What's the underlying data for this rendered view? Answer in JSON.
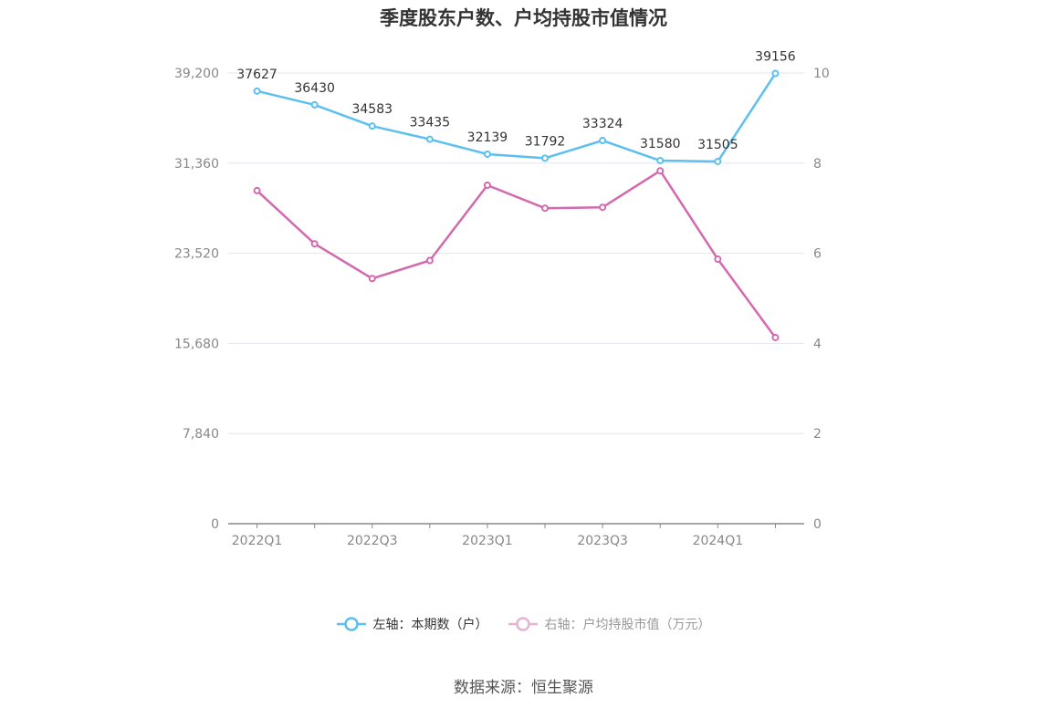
{
  "title": "季度股东户数、户均持股市值情况",
  "source": "数据来源：恒生聚源",
  "legend": {
    "left": "左轴：本期数（户）",
    "right": "右轴：户均持股市值（万元）"
  },
  "colors": {
    "holders": "#5bbff0",
    "value": "#d36aae",
    "grid": "#e3e6ee",
    "axis": "#888888"
  },
  "chart_data": {
    "type": "line",
    "title": "季度股东户数、户均持股市值情况",
    "categories": [
      "2022Q1",
      "2022Q2",
      "2022Q3",
      "2022Q4",
      "2023Q1",
      "2023Q2",
      "2023Q3",
      "2023Q4",
      "2024Q1",
      "2024Q2"
    ],
    "x_tick_labels": [
      "2022Q1",
      "2022Q3",
      "2023Q1",
      "2023Q3",
      "2024Q1"
    ],
    "y_left": {
      "range": [
        0,
        39200
      ],
      "ticks": [
        "0",
        "7,840",
        "15,680",
        "23,520",
        "31,360",
        "39,200"
      ]
    },
    "y_right": {
      "range": [
        0,
        10
      ],
      "ticks": [
        "0",
        "2",
        "4",
        "6",
        "8",
        "10"
      ]
    },
    "grid": true,
    "legend_position": "bottom",
    "series": [
      {
        "name": "左轴：本期数（户）",
        "axis": "left",
        "values": [
          37627,
          36430,
          34583,
          33435,
          32139,
          31792,
          33324,
          31580,
          31505,
          39156
        ],
        "labels": [
          "37627",
          "36430",
          "34583",
          "33435",
          "32139",
          "31792",
          "33324",
          "31580",
          "31505",
          "39156"
        ]
      },
      {
        "name": "右轴：户均持股市值（万元）",
        "axis": "right",
        "values": [
          7.39,
          6.21,
          5.44,
          5.84,
          7.51,
          7.0,
          7.02,
          7.83,
          5.87,
          4.13
        ]
      }
    ]
  }
}
